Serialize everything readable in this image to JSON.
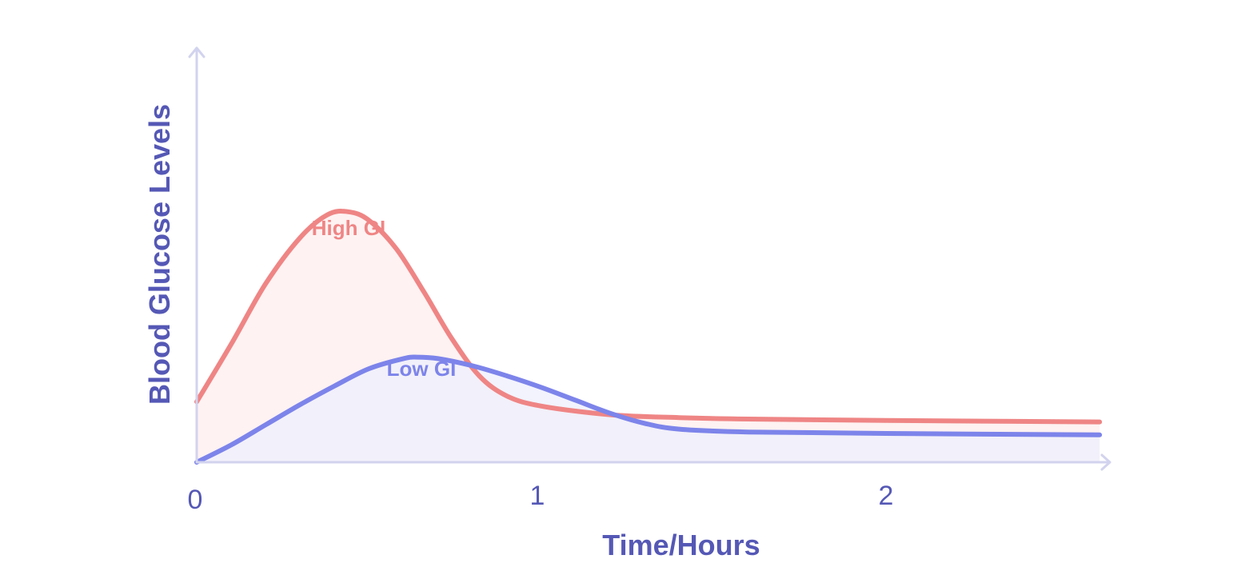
{
  "chart_data": {
    "type": "line",
    "xlabel": "Time/Hours",
    "ylabel": "Blood Glucose Levels",
    "x_ticks": [
      "0",
      "1",
      "2"
    ],
    "xlim": [
      0,
      2.62
    ],
    "ylim": [
      0,
      1
    ],
    "grid": false,
    "y_ticks_shown": false,
    "series": [
      {
        "name": "High GI",
        "color": "#ef8585",
        "fill_color": "#fdeeee",
        "x": [
          0,
          0.1,
          0.2,
          0.3,
          0.38,
          0.44,
          0.5,
          0.58,
          0.66,
          0.74,
          0.82,
          0.9,
          1.0,
          1.2,
          1.4,
          1.6,
          2.0,
          2.62
        ],
        "y": [
          0.21,
          0.41,
          0.62,
          0.78,
          0.86,
          0.87,
          0.84,
          0.74,
          0.59,
          0.43,
          0.3,
          0.23,
          0.195,
          0.165,
          0.155,
          0.15,
          0.145,
          0.14
        ]
      },
      {
        "name": "Low GI",
        "color": "#7d84ea",
        "fill_color": "#eeeffc",
        "x": [
          0,
          0.1,
          0.2,
          0.3,
          0.4,
          0.5,
          0.6,
          0.64,
          0.7,
          0.8,
          0.9,
          1.0,
          1.1,
          1.2,
          1.3,
          1.4,
          1.6,
          2.0,
          2.62
        ],
        "y": [
          0,
          0.06,
          0.13,
          0.2,
          0.265,
          0.325,
          0.36,
          0.365,
          0.36,
          0.335,
          0.3,
          0.26,
          0.215,
          0.17,
          0.135,
          0.115,
          0.105,
          0.1,
          0.095
        ]
      }
    ]
  }
}
